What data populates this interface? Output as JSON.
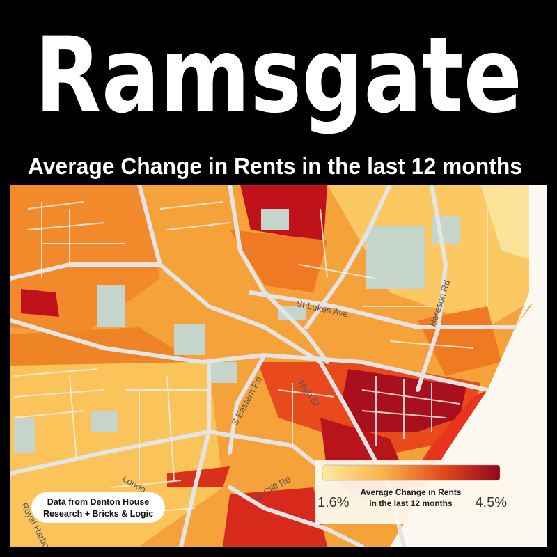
{
  "title": "Ramsgate",
  "subtitle": "Average Change in Rents in the last 12 months",
  "legend": {
    "title_lines": [
      "Average Change in Rents",
      "in the last 12 months"
    ],
    "min_label": "1.6%",
    "max_label": "4.5%"
  },
  "credit": [
    "Data from Denton House",
    "Research + Bricks & Logic"
  ],
  "street_labels": [
    "St Lukes Ave",
    "Hereson Rd",
    "S Eastern Rd",
    "High St",
    "W Cliff Rd",
    "Londo",
    "Royal Harbo"
  ]
}
